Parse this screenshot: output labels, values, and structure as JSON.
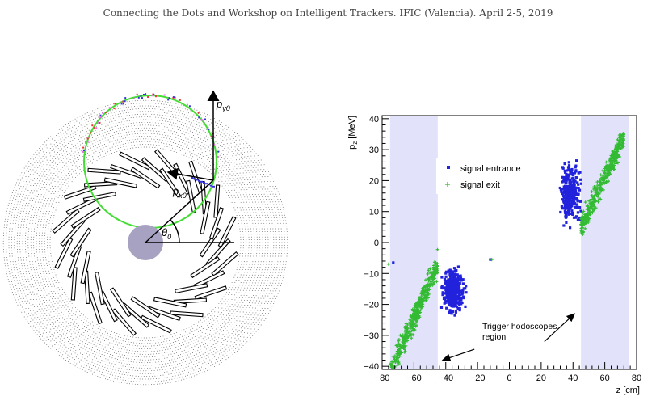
{
  "header": {
    "text": "Connecting the Dots and Workshop on Intelligent Trackers. IFIC (Valencia). April 2-5, 2019"
  },
  "detector": {
    "labels": {
      "py_base": "p",
      "py_sub": "y0",
      "px_base": "p",
      "px_sub": "x0",
      "theta_base": "θ",
      "theta_sub": "0"
    },
    "colors": {
      "track": "#44dd33",
      "target": "#a7a1c2",
      "hits_blue": "#3333dd",
      "hits_red": "#ee3333",
      "hits_pink": "#ee66ee"
    }
  },
  "chart_data": {
    "type": "scatter",
    "title": "",
    "xlabel": "z [cm]",
    "ylabel_base": "p",
    "ylabel_sub": "z",
    "ylabel_unit": " [MeV]",
    "xlim": [
      -80,
      80
    ],
    "ylim": [
      -41,
      41
    ],
    "xticks": [
      -80,
      -60,
      -40,
      -20,
      0,
      20,
      40,
      60,
      80
    ],
    "yticks": [
      -40,
      -30,
      -20,
      -10,
      0,
      10,
      20,
      30,
      40
    ],
    "grid": false,
    "legend_position": "top-left",
    "trigger_regions": [
      [
        -75,
        -45
      ],
      [
        45,
        75
      ]
    ],
    "annotation": {
      "line1": "Trigger hodoscopes",
      "line2": "region",
      "text_at": [
        -17,
        -28
      ],
      "arrow_left": {
        "from": [
          -22,
          -34.5
        ],
        "to": [
          -42,
          -38
        ]
      },
      "arrow_right": {
        "from": [
          22,
          -32
        ],
        "to": [
          41,
          -23
        ]
      }
    },
    "series": [
      {
        "name": "signal entrance",
        "color": "#2222dd",
        "marker": "square",
        "clusters": [
          {
            "x_range": [
              -44,
              -26
            ],
            "y_range": [
              -25,
              -6
            ],
            "count": 340
          },
          {
            "x_range": [
              30,
              47
            ],
            "y_range": [
              3,
              29
            ],
            "count": 300
          }
        ],
        "isolated": [
          [
            -73,
            -6.5
          ],
          [
            -12,
            -5.5
          ]
        ]
      },
      {
        "name": "signal exit",
        "color": "#33bb33",
        "marker": "plus",
        "clusters": [
          {
            "x_range": [
              -75,
              -45
            ],
            "y_range": [
              -42,
              -7
            ],
            "trend": "rising",
            "count": 420
          },
          {
            "x_range": [
              45,
              72
            ],
            "y_range": [
              5,
              34
            ],
            "trend": "rising",
            "count": 380
          }
        ],
        "isolated": [
          [
            -76,
            -7
          ],
          [
            -11,
            -5.5
          ]
        ]
      }
    ]
  }
}
